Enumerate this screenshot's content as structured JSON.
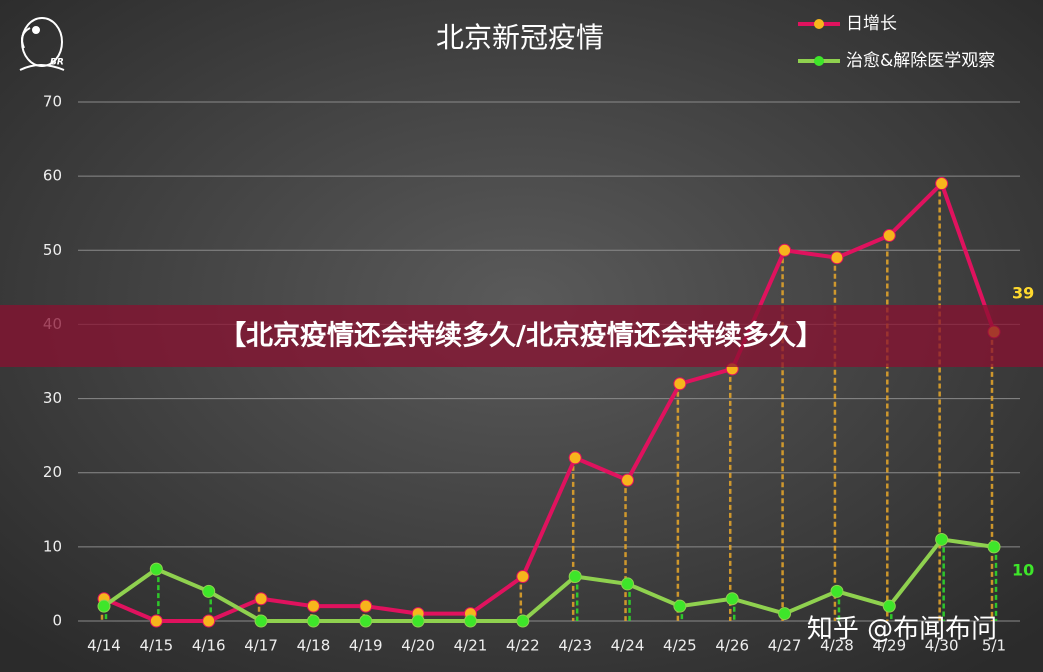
{
  "chart_data": {
    "type": "line",
    "title": "北京新冠疫情",
    "categories": [
      "4/14",
      "4/15",
      "4/16",
      "4/17",
      "4/18",
      "4/19",
      "4/20",
      "4/21",
      "4/22",
      "4/23",
      "4/24",
      "4/25",
      "4/26",
      "4/27",
      "4/28",
      "4/29",
      "4/30",
      "5/1"
    ],
    "series": [
      {
        "name": "日增长",
        "color": "#e0125e",
        "marker_color": "#f7b51c",
        "values": [
          3,
          0,
          0,
          3,
          2,
          2,
          1,
          1,
          6,
          22,
          19,
          32,
          34,
          50,
          49,
          52,
          59,
          39
        ]
      },
      {
        "name": "治愈&解除医学观察",
        "color": "#8fd14f",
        "marker_color": "#3ee62a",
        "values": [
          2,
          7,
          4,
          0,
          0,
          0,
          0,
          0,
          0,
          6,
          5,
          2,
          3,
          1,
          4,
          2,
          11,
          10
        ]
      }
    ],
    "ylim": [
      0,
      70
    ],
    "yticks": [
      0,
      10,
      20,
      30,
      40,
      50,
      60,
      70
    ],
    "grid": true,
    "legend": "top-right",
    "banner": "【北京疫情还会持续多久/北京疫情还会持续多久】",
    "watermark": "知乎 @布闻布问",
    "logo_text": "BR"
  }
}
